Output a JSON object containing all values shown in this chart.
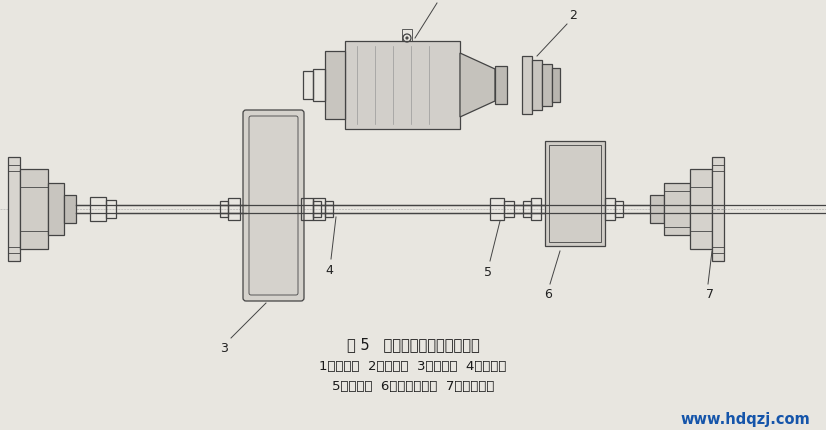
{
  "bg_color": "#e8e6e0",
  "line_color": "#444444",
  "title_fig": "图 5   小车运行机构传动系统图",
  "caption_line1": "1、电动机  2、制动器  3、减速器  4、补偿轴",
  "caption_line2": "5、联轴器  6、角形轴承箱  7、小车车轮",
  "watermark": "www.hdqzj.com",
  "fig_width": 8.26,
  "fig_height": 4.31,
  "dpi": 100
}
